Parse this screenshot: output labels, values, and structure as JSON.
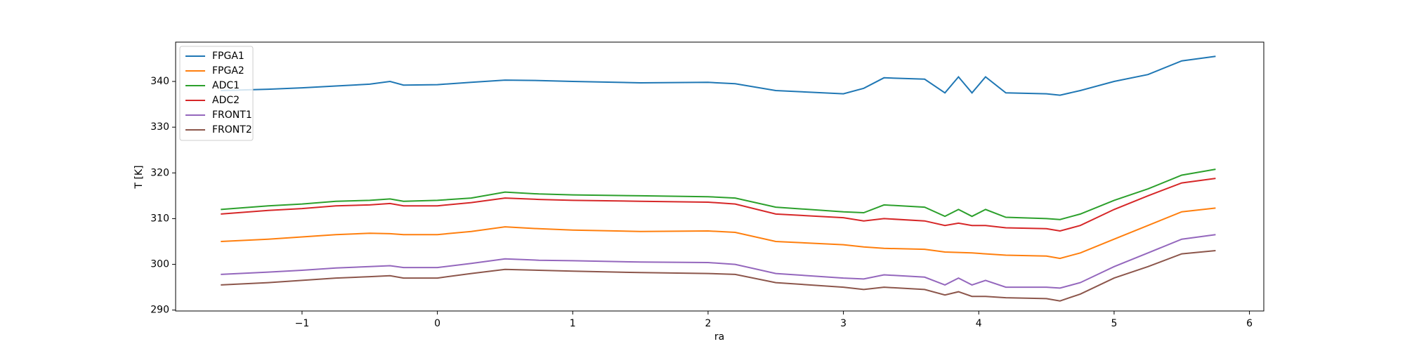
{
  "chart_data": {
    "type": "line",
    "x_label": "ra",
    "y_label": "T [K]",
    "x": [
      -1.6,
      -1.25,
      -1,
      -0.75,
      -0.5,
      -0.35,
      -0.25,
      0,
      0.25,
      0.5,
      0.75,
      1,
      1.5,
      2,
      2.2,
      2.5,
      3,
      3.15,
      3.3,
      3.6,
      3.75,
      3.85,
      3.95,
      4.05,
      4.2,
      4.5,
      4.6,
      4.75,
      5,
      5.25,
      5.5,
      5.75
    ],
    "series": [
      {
        "name": "FPGA1",
        "color": "#1f77b4",
        "values": [
          338,
          338.3,
          338.6,
          339,
          339.4,
          340,
          339.2,
          339.3,
          339.8,
          340.3,
          340.2,
          340,
          339.7,
          339.8,
          339.5,
          338,
          337.3,
          338.5,
          340.8,
          340.5,
          337.5,
          341,
          337.5,
          341,
          337.5,
          337.3,
          337,
          338,
          340,
          341.5,
          344.5,
          345.5
        ]
      },
      {
        "name": "FPGA2",
        "color": "#ff7f0e",
        "values": [
          305,
          305.5,
          306,
          306.5,
          306.8,
          306.7,
          306.5,
          306.5,
          307.2,
          308.2,
          307.8,
          307.5,
          307.2,
          307.3,
          307,
          305,
          304.3,
          303.8,
          303.5,
          303.3,
          302.7,
          302.6,
          302.5,
          302.3,
          302,
          301.8,
          301.3,
          302.5,
          305.5,
          308.5,
          311.5,
          312.3
        ]
      },
      {
        "name": "ADC1",
        "color": "#2ca02c",
        "values": [
          312,
          312.8,
          313.2,
          313.8,
          314,
          314.3,
          313.8,
          314,
          314.5,
          315.8,
          315.4,
          315.2,
          315,
          314.8,
          314.5,
          312.5,
          311.5,
          311.3,
          313,
          312.5,
          310.5,
          312,
          310.5,
          312,
          310.3,
          310,
          309.8,
          311,
          314,
          316.5,
          319.5,
          320.8
        ]
      },
      {
        "name": "ADC2",
        "color": "#d62728",
        "values": [
          311,
          311.8,
          312.2,
          312.8,
          313,
          313.3,
          312.8,
          312.8,
          313.5,
          314.5,
          314.2,
          314,
          313.8,
          313.6,
          313.2,
          311,
          310.2,
          309.5,
          310,
          309.5,
          308.5,
          309,
          308.5,
          308.5,
          308,
          307.8,
          307.3,
          308.5,
          312,
          315,
          317.8,
          318.8
        ]
      },
      {
        "name": "FRONT1",
        "color": "#9467bd",
        "values": [
          297.8,
          298.3,
          298.7,
          299.2,
          299.5,
          299.7,
          299.3,
          299.3,
          300.2,
          301.2,
          300.9,
          300.8,
          300.5,
          300.4,
          300,
          298,
          297,
          296.8,
          297.7,
          297.2,
          295.5,
          297,
          295.5,
          296.5,
          295,
          295,
          294.8,
          296,
          299.5,
          302.5,
          305.5,
          306.5
        ]
      },
      {
        "name": "FRONT2",
        "color": "#8c564b",
        "values": [
          295.5,
          296,
          296.5,
          297,
          297.3,
          297.5,
          297,
          297,
          298,
          298.9,
          298.7,
          298.5,
          298.2,
          298,
          297.8,
          296,
          295,
          294.5,
          295,
          294.5,
          293.3,
          294,
          293,
          293,
          292.7,
          292.5,
          292,
          293.5,
          297,
          299.5,
          302.3,
          303
        ]
      }
    ],
    "xlim": [
      -1.934,
      6.106
    ],
    "ylim": [
      289.8,
      348.6
    ],
    "xticks": [
      {
        "value": -1,
        "label": "−1"
      },
      0,
      1,
      2,
      3,
      4,
      5,
      6
    ],
    "yticks": [
      290,
      300,
      310,
      320,
      330,
      340
    ],
    "legend": "upper left"
  }
}
